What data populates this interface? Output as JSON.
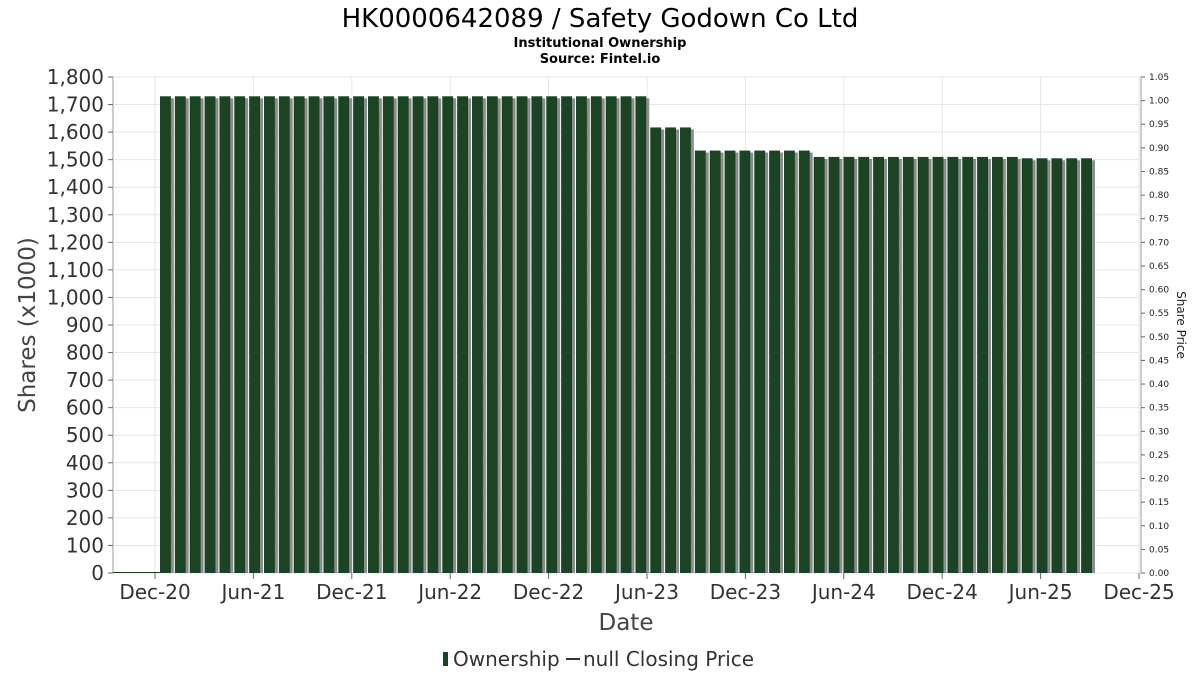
{
  "chart_data": {
    "type": "bar",
    "title": "HK0000642089 / Safety Godown Co Ltd",
    "subtitle": "Institutional Ownership",
    "source": "Source: Fintel.io",
    "xlabel": "Date",
    "ylabel": "Shares (x1000)",
    "y2label": "Share Price",
    "ylim": [
      0,
      1800
    ],
    "y2lim": [
      0,
      1.05
    ],
    "yticks": [
      0,
      100,
      200,
      300,
      400,
      500,
      600,
      700,
      800,
      900,
      1000,
      1100,
      1200,
      1300,
      1400,
      1500,
      1600,
      1700,
      1800
    ],
    "ytick_labels": [
      "0",
      "100",
      "200",
      "300",
      "400",
      "500",
      "600",
      "700",
      "800",
      "900",
      "1,000",
      "1,100",
      "1,200",
      "1,300",
      "1,400",
      "1,500",
      "1,600",
      "1,700",
      "1,800"
    ],
    "y2tick_labels": [
      "0.00",
      "0.05",
      "0.10",
      "0.15",
      "0.20",
      "0.25",
      "0.30",
      "0.35",
      "0.40",
      "0.45",
      "0.50",
      "0.55",
      "0.60",
      "0.65",
      "0.70",
      "0.75",
      "0.80",
      "0.85",
      "0.90",
      "0.95",
      "1.00",
      "1.05"
    ],
    "xtick_labels": [
      "Dec-20",
      "Jun-21",
      "Dec-21",
      "Jun-22",
      "Dec-22",
      "Jun-23",
      "Dec-23",
      "Jun-24",
      "Dec-24",
      "Jun-25",
      "Dec-25"
    ],
    "grid": true,
    "legend": "bottom-center",
    "legend_items": [
      "Ownership",
      "null Closing Price"
    ],
    "colors": {
      "bar": "#1b4424",
      "bar_shadow": "#8a8f8a",
      "grid": "#e6e6e6"
    },
    "series": [
      {
        "name": "Ownership",
        "values": [
          1730,
          1730,
          1730,
          1730,
          1730,
          1730,
          1730,
          1730,
          1730,
          1730,
          1730,
          1730,
          1730,
          1730,
          1730,
          1730,
          1730,
          1730,
          1730,
          1730,
          1730,
          1730,
          1730,
          1730,
          1730,
          1730,
          1730,
          1730,
          1730,
          1730,
          1730,
          1730,
          1730,
          1617,
          1617,
          1617,
          1533,
          1533,
          1533,
          1533,
          1533,
          1533,
          1533,
          1533,
          1510,
          1510,
          1510,
          1510,
          1510,
          1510,
          1510,
          1510,
          1510,
          1510,
          1510,
          1510,
          1510,
          1510,
          1505,
          1505,
          1505,
          1505,
          1505
        ]
      }
    ]
  }
}
